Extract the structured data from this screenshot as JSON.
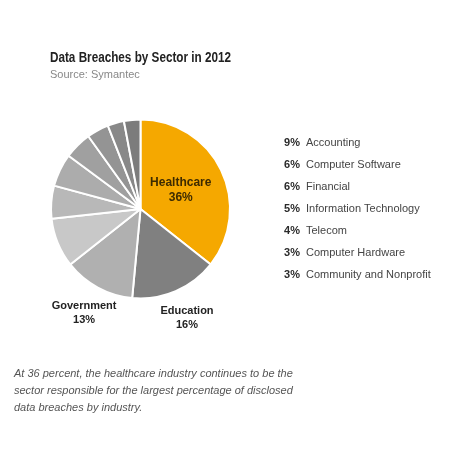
{
  "chart_data": {
    "type": "pie",
    "title": "Data Breaches by Sector in 2012",
    "subtitle": "Source: Symantec",
    "categories": [
      "Healthcare",
      "Education",
      "Government",
      "Accounting",
      "Computer Software",
      "Financial",
      "Information Technology",
      "Telecom",
      "Computer Hardware",
      "Community and Nonprofit"
    ],
    "values": [
      36,
      16,
      13,
      9,
      6,
      6,
      5,
      4,
      3,
      3
    ],
    "value_labels": [
      "36%",
      "16%",
      "13%",
      "9%",
      "6%",
      "6%",
      "5%",
      "4%",
      "3%",
      "3%"
    ],
    "colors": [
      "#F5A800",
      "#808080",
      "#B0B0B0",
      "#C8C8C8",
      "#B8B8B8",
      "#ACACAC",
      "#A0A0A0",
      "#949494",
      "#888888",
      "#7C7C7C"
    ],
    "data_labels": true,
    "annotations": [
      "At 36 percent, the healthcare industry continues to be the\nsector responsible for the largest percentage of disclosed\ndata breaches by industry."
    ]
  }
}
